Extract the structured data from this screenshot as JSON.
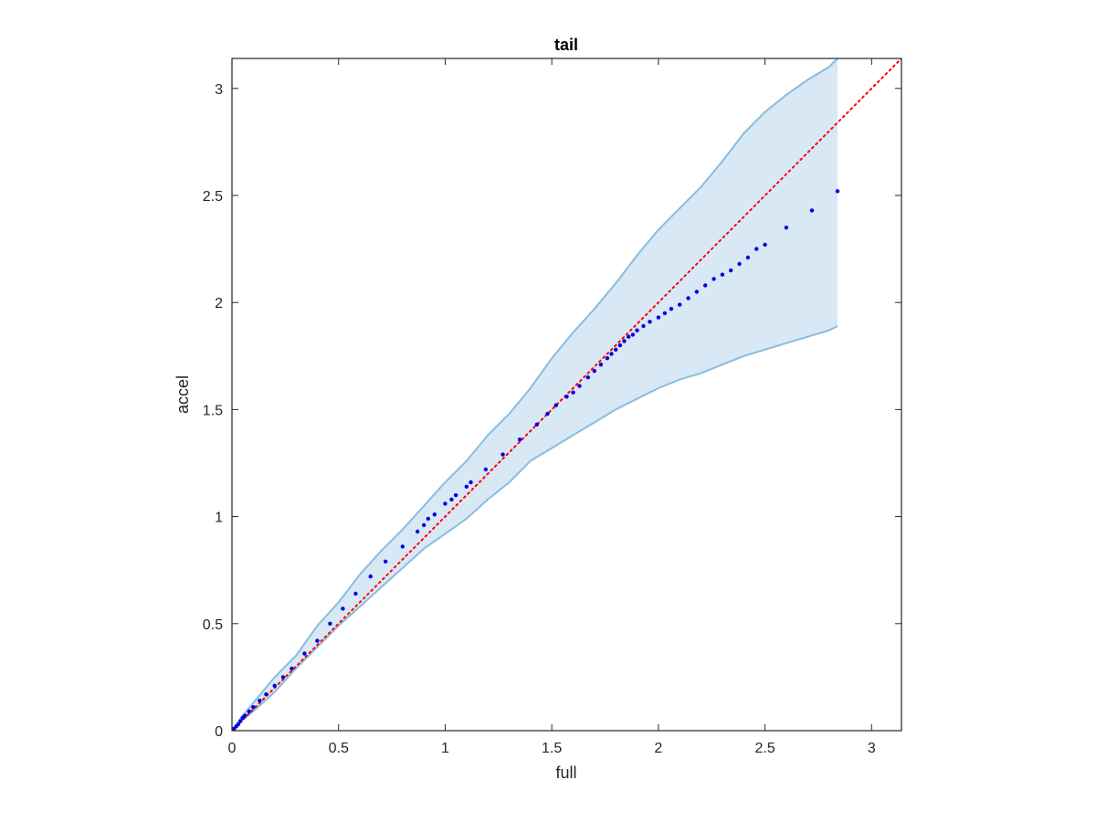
{
  "chart_data": {
    "type": "scatter",
    "title": "tail",
    "xlabel": "full",
    "ylabel": "accel",
    "xlim": [
      0,
      3.14
    ],
    "ylim": [
      0,
      3.14
    ],
    "xticks": [
      "0",
      "0.5",
      "1",
      "1.5",
      "2",
      "2.5",
      "3"
    ],
    "yticks": [
      "0",
      "0.5",
      "1",
      "1.5",
      "2",
      "2.5",
      "3"
    ],
    "tick_values": [
      0,
      0.5,
      1,
      1.5,
      2,
      2.5,
      3
    ],
    "grid": false,
    "colors": {
      "points": "#0000e6",
      "reference_line": "#ff0000",
      "band_fill": "#d8e8f4",
      "band_edge": "#88bde0"
    },
    "reference_line": {
      "x": [
        0,
        3.14
      ],
      "y": [
        0,
        3.14
      ],
      "style": "dotted"
    },
    "band": {
      "x": [
        0,
        0.05,
        0.1,
        0.2,
        0.3,
        0.4,
        0.5,
        0.6,
        0.7,
        0.8,
        0.9,
        1.0,
        1.1,
        1.2,
        1.3,
        1.4,
        1.5,
        1.6,
        1.7,
        1.8,
        1.9,
        2.0,
        2.1,
        2.2,
        2.3,
        2.4,
        2.5,
        2.6,
        2.7,
        2.8,
        2.84
      ],
      "upper": [
        0,
        0.07,
        0.13,
        0.25,
        0.35,
        0.49,
        0.6,
        0.73,
        0.84,
        0.94,
        1.05,
        1.16,
        1.26,
        1.38,
        1.48,
        1.6,
        1.74,
        1.86,
        1.97,
        2.09,
        2.22,
        2.34,
        2.44,
        2.54,
        2.66,
        2.79,
        2.89,
        2.97,
        3.04,
        3.1,
        3.14
      ],
      "lower": [
        0,
        0.05,
        0.09,
        0.18,
        0.29,
        0.39,
        0.49,
        0.58,
        0.67,
        0.76,
        0.85,
        0.92,
        0.99,
        1.08,
        1.16,
        1.26,
        1.32,
        1.38,
        1.44,
        1.5,
        1.55,
        1.6,
        1.64,
        1.67,
        1.71,
        1.75,
        1.78,
        1.81,
        1.84,
        1.87,
        1.89
      ]
    },
    "series": [
      {
        "x": [
          0.005,
          0.01,
          0.02,
          0.03,
          0.04,
          0.05,
          0.06,
          0.08,
          0.1,
          0.13,
          0.16,
          0.2,
          0.24,
          0.28,
          0.34,
          0.4,
          0.46,
          0.52,
          0.58,
          0.65,
          0.72,
          0.8,
          0.87,
          0.9,
          0.92,
          0.95,
          1.0,
          1.03,
          1.05,
          1.1,
          1.12,
          1.19,
          1.27,
          1.35,
          1.43,
          1.48,
          1.52,
          1.57,
          1.6,
          1.63,
          1.67,
          1.7,
          1.73,
          1.76,
          1.78,
          1.8,
          1.82,
          1.84,
          1.86,
          1.88,
          1.9,
          1.93,
          1.96,
          2.0,
          2.03,
          2.06,
          2.1,
          2.14,
          2.18,
          2.22,
          2.26,
          2.3,
          2.34,
          2.38,
          2.42,
          2.46,
          2.5,
          2.6,
          2.72,
          2.84
        ],
        "y": [
          0.005,
          0.01,
          0.02,
          0.03,
          0.045,
          0.06,
          0.07,
          0.09,
          0.11,
          0.14,
          0.17,
          0.21,
          0.25,
          0.29,
          0.36,
          0.42,
          0.5,
          0.57,
          0.64,
          0.72,
          0.79,
          0.86,
          0.93,
          0.96,
          0.99,
          1.01,
          1.06,
          1.08,
          1.1,
          1.14,
          1.16,
          1.22,
          1.29,
          1.36,
          1.43,
          1.48,
          1.52,
          1.56,
          1.58,
          1.61,
          1.65,
          1.68,
          1.71,
          1.74,
          1.76,
          1.78,
          1.8,
          1.82,
          1.84,
          1.85,
          1.87,
          1.89,
          1.91,
          1.93,
          1.95,
          1.97,
          1.99,
          2.02,
          2.05,
          2.08,
          2.11,
          2.13,
          2.15,
          2.18,
          2.21,
          2.25,
          2.27,
          2.35,
          2.43,
          2.52
        ]
      }
    ]
  }
}
